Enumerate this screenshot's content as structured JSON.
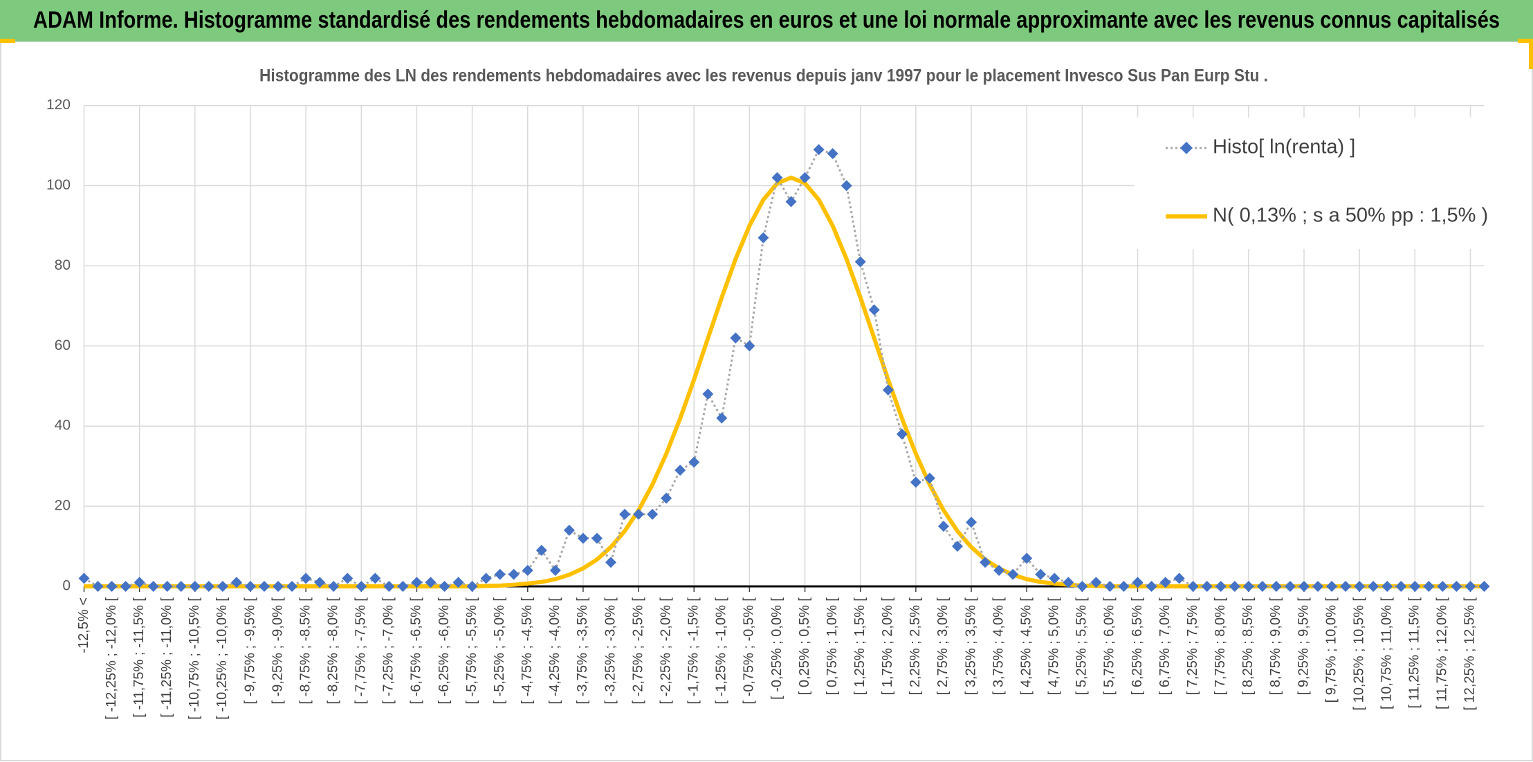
{
  "header": {
    "title": "ADAM Informe. Histogramme standardisé des rendements hebdomadaires en euros et une loi normale approximante avec les revenus connus capitalisés"
  },
  "chart_data": {
    "type": "line",
    "title": "Histogramme des LN des rendements hebdomadaires avec les revenus depuis janv 1997 pour le placement Invesco Sus Pan Eurp Stu .",
    "categories": [
      "-12,5% <",
      null,
      "[ -12,25% ; -12,0% [",
      null,
      "[ -11,75% ; -11,5% [",
      null,
      "[ -11,25% ; -11,0% [",
      null,
      "[ -10,75% ; -10,5% [",
      null,
      "[ -10,25% ; -10,0% [",
      null,
      "[ -9,75% ; -9,5% [",
      null,
      "[ -9,25% ; -9,0% [",
      null,
      "[ -8,75% ; -8,5% [",
      null,
      "[ -8,25% ; -8,0% [",
      null,
      "[ -7,75% ; -7,5% [",
      null,
      "[ -7,25% ; -7,0% [",
      null,
      "[ -6,75% ; -6,5% [",
      null,
      "[ -6,25% ; -6,0% [",
      null,
      "[ -5,75% ; -5,5% [",
      null,
      "[ -5,25% ; -5,0% [",
      null,
      "[ -4,75% ; -4,5% [",
      null,
      "[ -4,25% ; -4,0% [",
      null,
      "[ -3,75% ; -3,5% [",
      null,
      "[ -3,25% ; -3,0% [",
      null,
      "[ -2,75% ; -2,5% [",
      null,
      "[ -2,25% ; -2,0% [",
      null,
      "[ -1,75% ; -1,5% [",
      null,
      "[ -1,25% ; -1,0% [",
      null,
      "[ -0,75% ; -0,5% [",
      null,
      "[ -0,25% ; 0,0% [",
      null,
      "[ 0,25% ; 0,5% [",
      null,
      "[ 0,75% ; 1,0% [",
      null,
      "[ 1,25% ; 1,5% [",
      null,
      "[ 1,75% ; 2,0% [",
      null,
      "[ 2,25% ; 2,5% [",
      null,
      "[ 2,75% ; 3,0% [",
      null,
      "[ 3,25% ; 3,5% [",
      null,
      "[ 3,75% ; 4,0% [",
      null,
      "[ 4,25% ; 4,5% [",
      null,
      "[ 4,75% ; 5,0% [",
      null,
      "[ 5,25% ; 5,5% [",
      null,
      "[ 5,75% ; 6,0% [",
      null,
      "[ 6,25% ; 6,5% [",
      null,
      "[ 6,75% ; 7,0% [",
      null,
      "[ 7,25% ; 7,5% [",
      null,
      "[ 7,75% ; 8,0% [",
      null,
      "[ 8,25% ; 8,5% [",
      null,
      "[ 8,75% ; 9,0% [",
      null,
      "[ 9,25% ; 9,5% [",
      null,
      "[ 9,75% ; 10,0% [",
      null,
      "[ 10,25% ; 10,5% [",
      null,
      "[ 10,75% ; 11,0% [",
      null,
      "[ 11,25% ; 11,5% [",
      null,
      "[ 11,75% ; 12,0% [",
      null,
      "[ 12,25% ; 12,5% [",
      null
    ],
    "series": [
      {
        "name": "Histo[ ln(renta) ]",
        "color": "#4472c4",
        "line_color": "#a6a6a6",
        "marker": "diamond",
        "values": [
          2,
          0,
          0,
          0,
          1,
          0,
          0,
          0,
          0,
          0,
          0,
          1,
          0,
          0,
          0,
          0,
          2,
          1,
          0,
          2,
          0,
          2,
          0,
          0,
          1,
          1,
          0,
          1,
          0,
          2,
          3,
          3,
          4,
          9,
          4,
          14,
          12,
          12,
          6,
          18,
          18,
          18,
          22,
          29,
          31,
          48,
          42,
          62,
          60,
          87,
          102,
          96,
          102,
          109,
          108,
          100,
          81,
          69,
          49,
          38,
          26,
          27,
          15,
          10,
          16,
          6,
          4,
          3,
          7,
          3,
          2,
          1,
          0,
          1,
          0,
          0,
          1,
          0,
          1,
          2,
          0,
          0,
          0,
          0,
          0,
          0,
          0,
          0,
          0,
          0,
          0,
          0,
          0,
          0,
          0,
          0,
          0,
          0,
          0,
          0,
          0,
          0
        ]
      },
      {
        "name": "N( 0,13% ; s a 50% pp : 1,5% )",
        "color": "#ffc000",
        "marker": "none",
        "values": [
          0,
          0,
          0,
          0,
          0,
          0,
          0,
          0,
          0,
          0,
          0,
          0,
          0,
          0,
          0,
          0,
          0,
          0,
          0,
          0,
          0,
          0,
          0,
          0,
          0,
          0,
          0,
          0,
          0,
          0.1,
          0.2,
          0.4,
          0.7,
          1.1,
          1.8,
          2.9,
          4.5,
          6.7,
          9.8,
          13.8,
          19.0,
          25.4,
          33.1,
          41.9,
          51.6,
          61.9,
          72.1,
          81.7,
          90.0,
          96.5,
          100.6,
          102,
          100.6,
          96.5,
          90.0,
          81.7,
          72.1,
          61.9,
          51.6,
          41.9,
          33.1,
          25.4,
          19.0,
          13.8,
          9.8,
          6.7,
          4.5,
          2.9,
          1.8,
          1.1,
          0.7,
          0.4,
          0.2,
          0.1,
          0,
          0,
          0,
          0,
          0,
          0,
          0,
          0,
          0,
          0,
          0,
          0,
          0,
          0,
          0,
          0,
          0,
          0,
          0,
          0,
          0,
          0,
          0,
          0,
          0,
          0,
          0,
          0
        ]
      }
    ],
    "ylim": [
      0,
      120
    ],
    "yticks": [
      0,
      20,
      40,
      60,
      80,
      100,
      120
    ],
    "grid": true,
    "legend": "upper right"
  }
}
